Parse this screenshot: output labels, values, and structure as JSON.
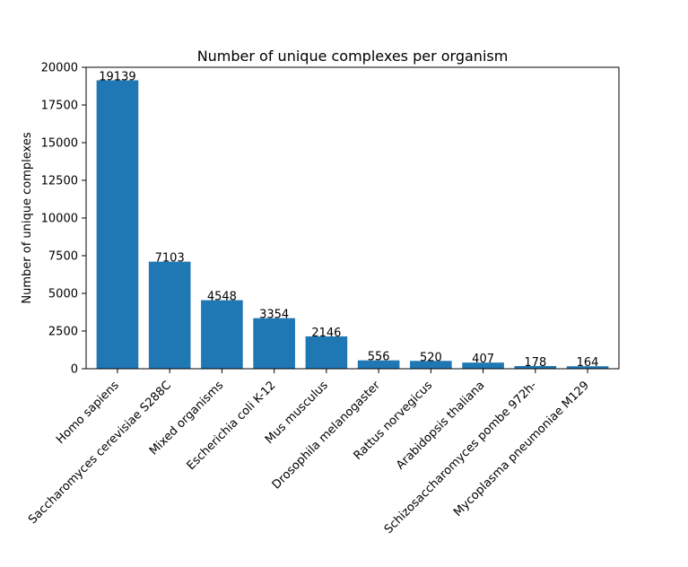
{
  "chart_data": {
    "type": "bar",
    "title": "Number of unique complexes per organism",
    "xlabel": "",
    "ylabel": "Number of unique complexes",
    "ylim": [
      0,
      20000
    ],
    "yticks": [
      0,
      2500,
      5000,
      7500,
      10000,
      12500,
      15000,
      17500,
      20000
    ],
    "categories": [
      "Homo sapiens",
      "Saccharomyces cerevisiae S288C",
      "Mixed organisms",
      "Escherichia coli K-12",
      "Mus musculus",
      "Drosophila melanogaster",
      "Rattus norvegicus",
      "Arabidopsis thaliana",
      "Schizosaccharomyces pombe 972h-",
      "Mycoplasma pneumoniae M129"
    ],
    "values": [
      19139,
      7103,
      4548,
      3354,
      2146,
      556,
      520,
      407,
      178,
      164
    ],
    "bar_color": "#1f77b4",
    "grid": false,
    "legend": "none"
  }
}
